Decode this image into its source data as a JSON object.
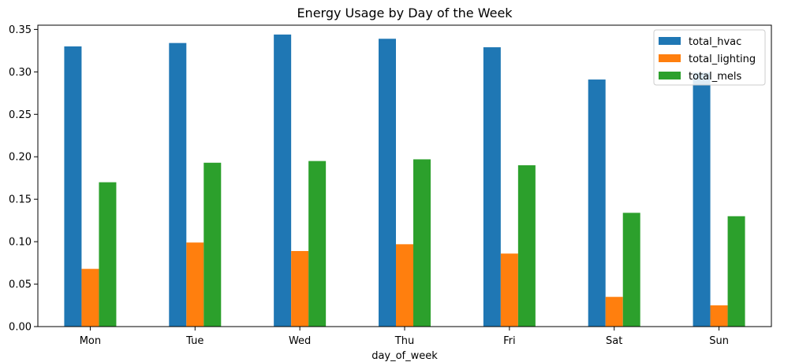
{
  "chart_data": {
    "type": "bar",
    "title": "Energy Usage by Day of the Week",
    "xlabel": "day_of_week",
    "ylabel": "",
    "categories": [
      "Mon",
      "Tue",
      "Wed",
      "Thu",
      "Fri",
      "Sat",
      "Sun"
    ],
    "series": [
      {
        "name": "total_hvac",
        "color": "#1f77b4",
        "values": [
          0.33,
          0.334,
          0.344,
          0.339,
          0.329,
          0.291,
          0.299
        ]
      },
      {
        "name": "total_lighting",
        "color": "#ff7f0e",
        "values": [
          0.068,
          0.099,
          0.089,
          0.097,
          0.086,
          0.035,
          0.025
        ]
      },
      {
        "name": "total_mels",
        "color": "#2ca02c",
        "values": [
          0.17,
          0.193,
          0.195,
          0.197,
          0.19,
          0.134,
          0.13
        ]
      }
    ],
    "ylim": [
      0,
      0.355
    ],
    "yticks": [
      "0.00",
      "0.05",
      "0.10",
      "0.15",
      "0.20",
      "0.25",
      "0.30",
      "0.35"
    ],
    "grid": false,
    "legend_position": "top-right"
  }
}
